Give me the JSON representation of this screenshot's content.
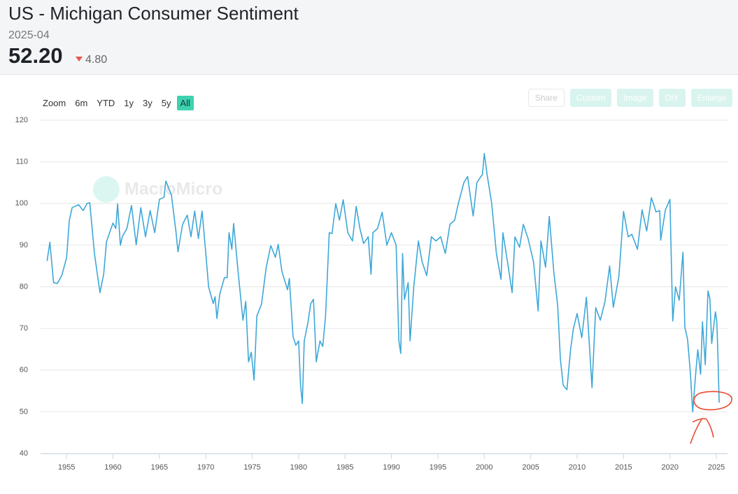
{
  "header": {
    "title": "US - Michigan Consumer Sentiment",
    "date": "2025-04",
    "value": "52.20",
    "change": "4.80",
    "direction": "down"
  },
  "toolbar": {
    "zoom": "Zoom",
    "ranges": [
      "6m",
      "YTD",
      "1y",
      "3y",
      "5y",
      "All"
    ],
    "active": "All",
    "buttons": [
      "Share",
      "Custom",
      "Image",
      "DIY",
      "Enlarge"
    ]
  },
  "watermark": "MacroMicro",
  "chart_data": {
    "type": "line",
    "color": "#3ea7d8",
    "grid": true,
    "xlim": [
      1952.2,
      2026.2
    ],
    "xticks": [
      1955,
      1960,
      1965,
      1970,
      1975,
      1980,
      1985,
      1990,
      1995,
      2000,
      2005,
      2010,
      2015,
      2020,
      2025
    ],
    "ylim": [
      40,
      120
    ],
    "yticks": [
      40,
      50,
      60,
      70,
      80,
      90,
      100,
      110,
      120
    ],
    "x": [
      1952.9,
      1953.2,
      1953.6,
      1954,
      1954.5,
      1955,
      1955.3,
      1955.6,
      1956.3,
      1956.8,
      1957.2,
      1957.5,
      1958,
      1958.6,
      1959,
      1959.3,
      1960,
      1960.3,
      1960.5,
      1960.8,
      1961,
      1961.5,
      1962,
      1962.5,
      1963,
      1963.5,
      1964,
      1964.5,
      1965,
      1965.5,
      1965.7,
      1966.3,
      1966.8,
      1967,
      1967.5,
      1968,
      1968.4,
      1968.8,
      1969.2,
      1969.6,
      1970,
      1970.3,
      1970.8,
      1971,
      1971.2,
      1971.5,
      1972,
      1972.3,
      1972.5,
      1972.8,
      1973,
      1973.5,
      1974,
      1974.3,
      1974.6,
      1974.9,
      1975.2,
      1975.5,
      1976,
      1976.5,
      1977,
      1977.5,
      1977.8,
      1978.2,
      1978.8,
      1979,
      1979.4,
      1979.7,
      1980,
      1980.2,
      1980.4,
      1980.6,
      1981,
      1981.3,
      1981.6,
      1981.9,
      1982.3,
      1982.6,
      1982.9,
      1983.3,
      1983.6,
      1984,
      1984.4,
      1984.8,
      1985.3,
      1985.8,
      1986.2,
      1986.6,
      1987,
      1987.5,
      1987.8,
      1988,
      1988.5,
      1989,
      1989.5,
      1990,
      1990.5,
      1990.8,
      1991,
      1991.2,
      1991.4,
      1991.8,
      1992,
      1992.4,
      1992.9,
      1993.3,
      1993.8,
      1994.3,
      1994.8,
      1995.3,
      1995.8,
      1996.3,
      1996.8,
      1997.2,
      1997.8,
      1998.2,
      1998.8,
      1999.2,
      1999.8,
      2000,
      2000.3,
      2000.8,
      2001.3,
      2001.8,
      2002,
      2002.5,
      2003,
      2003.3,
      2003.8,
      2004.2,
      2004.7,
      2005.3,
      2005.8,
      2006.1,
      2006.6,
      2007,
      2007.5,
      2007.9,
      2008.2,
      2008.5,
      2008.9,
      2009.3,
      2009.6,
      2010,
      2010.5,
      2011,
      2011.6,
      2012,
      2012.5,
      2013,
      2013.5,
      2013.9,
      2014.5,
      2015,
      2015.5,
      2015.9,
      2016.5,
      2017,
      2017.5,
      2018,
      2018.5,
      2018.9,
      2019,
      2019.5,
      2020,
      2020.3,
      2020.6,
      2021,
      2021.4,
      2021.6,
      2021.9,
      2022.2,
      2022.45,
      2022.8,
      2023,
      2023.3,
      2023.5,
      2023.8,
      2024.1,
      2024.3,
      2024.5,
      2024.9,
      2025.05,
      2025.15,
      2025.3
    ],
    "values": [
      86.2,
      90.7,
      81,
      80.8,
      82.8,
      87,
      95.9,
      99,
      99.7,
      98.3,
      100,
      100.2,
      88,
      78.6,
      83,
      90.8,
      95.3,
      94,
      99.9,
      90,
      92,
      94,
      99.5,
      90.1,
      99,
      92,
      98.3,
      93,
      101,
      101.5,
      105.4,
      102,
      93,
      88.4,
      95,
      97.2,
      92,
      98.2,
      91.6,
      98.2,
      88,
      80,
      76,
      77.6,
      72.4,
      78.2,
      82.2,
      82.2,
      93,
      89,
      95.2,
      83,
      72,
      76.5,
      62,
      64.3,
      57.6,
      73,
      75.8,
      84.6,
      89.9,
      87.1,
      90.2,
      83.7,
      79.3,
      82,
      68,
      66,
      67,
      56.5,
      52,
      67,
      71.4,
      76,
      77,
      62,
      67,
      65.7,
      73,
      93,
      92.8,
      100,
      96,
      100.9,
      93,
      91,
      99.3,
      94,
      90.4,
      92,
      83,
      93,
      94,
      97.9,
      90,
      93,
      90,
      67,
      64,
      88,
      77,
      81,
      67,
      80,
      91,
      86,
      82.7,
      92,
      91,
      92,
      88,
      95,
      96,
      100,
      105,
      106.5,
      97,
      105,
      107,
      112,
      107,
      100,
      88,
      81.8,
      93,
      86,
      78.6,
      92,
      89.5,
      95,
      91.7,
      86,
      74.2,
      91,
      84.7,
      96.9,
      83.4,
      75.5,
      62.6,
      56.4,
      55.3,
      65,
      70,
      73.6,
      67.8,
      77.5,
      55.8,
      75,
      72,
      76.4,
      85,
      75.1,
      82.5,
      98.1,
      92,
      92.6,
      89,
      98.5,
      93.4,
      101.4,
      98,
      98.3,
      91.2,
      98.4,
      101,
      71.8,
      80,
      76.8,
      88.3,
      70.3,
      67.4,
      59.4,
      50,
      59.9,
      64.9,
      59,
      71.6,
      61.3,
      79,
      77.2,
      66.4,
      74,
      71.7,
      64.7,
      52.2
    ]
  }
}
